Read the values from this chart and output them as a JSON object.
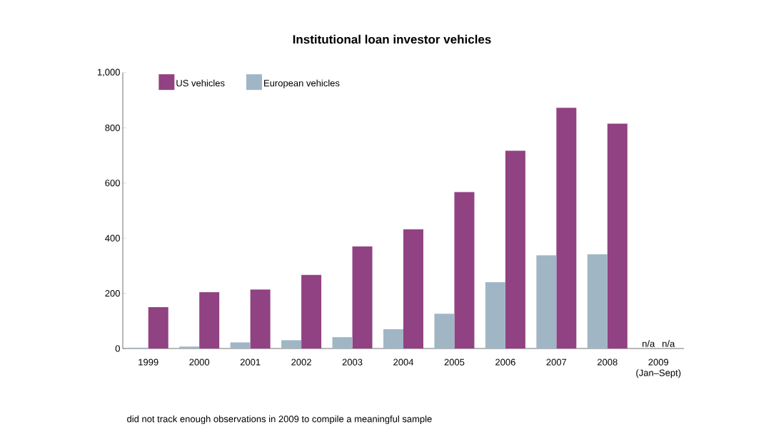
{
  "chart_data": {
    "type": "bar",
    "title": "Institutional loan investor vehicles",
    "categories": [
      "1999",
      "2000",
      "2001",
      "2002",
      "2003",
      "2004",
      "2005",
      "2006",
      "2007",
      "2008",
      "2009 (Jan–Sept)"
    ],
    "series": [
      {
        "name": "US vehicles",
        "color": "#914282",
        "values": [
          150,
          204,
          214,
          267,
          370,
          432,
          567,
          717,
          873,
          815,
          null
        ],
        "value_labels": [
          null,
          null,
          null,
          null,
          null,
          null,
          null,
          null,
          null,
          null,
          "n/a"
        ]
      },
      {
        "name": "European vehicles",
        "color": "#a0b6c4",
        "values": [
          3,
          7,
          22,
          30,
          41,
          70,
          126,
          240,
          338,
          342,
          null
        ],
        "value_labels": [
          null,
          null,
          null,
          null,
          null,
          null,
          null,
          null,
          null,
          null,
          "n/a"
        ]
      }
    ],
    "ylim": [
      0,
      1000
    ],
    "yticks": [
      0,
      200,
      400,
      600,
      800,
      {
        "value": 1000,
        "label": "1,000"
      }
    ],
    "grid": false,
    "legend": "top left",
    "annotations": [
      "did not track enough observations in 2009 to compile a meaningful sample"
    ]
  }
}
